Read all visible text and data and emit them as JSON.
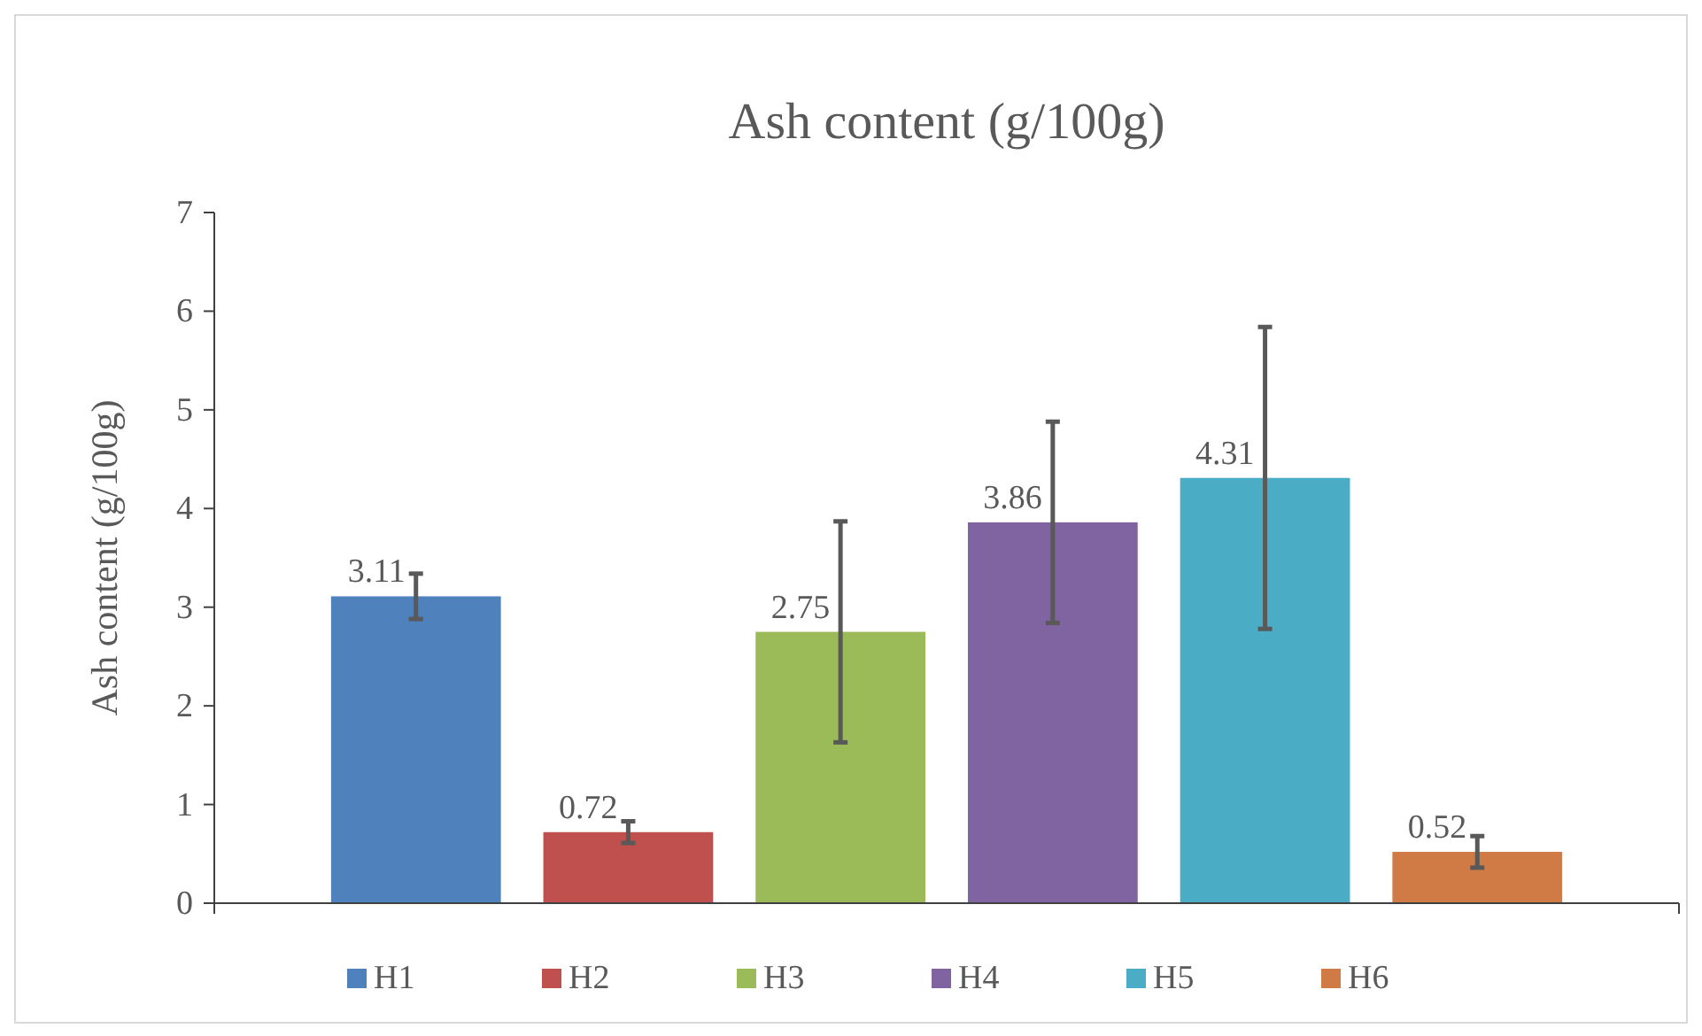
{
  "chart_data": {
    "type": "bar",
    "title": "Ash content (g/100g)",
    "ylabel": "Ash content (g/100g)",
    "categories": [
      null
    ],
    "series": [
      {
        "name": "H1",
        "color": "#4f81bd",
        "values": [
          3.11
        ],
        "errors": [
          0.23
        ]
      },
      {
        "name": "H2",
        "color": "#c0504d",
        "values": [
          0.72
        ],
        "errors": [
          0.11
        ]
      },
      {
        "name": "H3",
        "color": "#9bbb59",
        "values": [
          2.75
        ],
        "errors": [
          1.12
        ]
      },
      {
        "name": "H4",
        "color": "#8064a2",
        "values": [
          3.86
        ],
        "errors": [
          1.02
        ]
      },
      {
        "name": "H5",
        "color": "#4bacc6",
        "values": [
          4.31
        ],
        "errors": [
          1.53
        ]
      },
      {
        "name": "H6",
        "color": "#d07a45",
        "values": [
          0.52
        ],
        "errors": [
          0.16
        ]
      }
    ],
    "ylim": [
      0,
      7
    ],
    "yticks": [
      0,
      1,
      2,
      3,
      4,
      5,
      6,
      7
    ],
    "data_labels": true,
    "legend": "bottom",
    "grid": false
  }
}
